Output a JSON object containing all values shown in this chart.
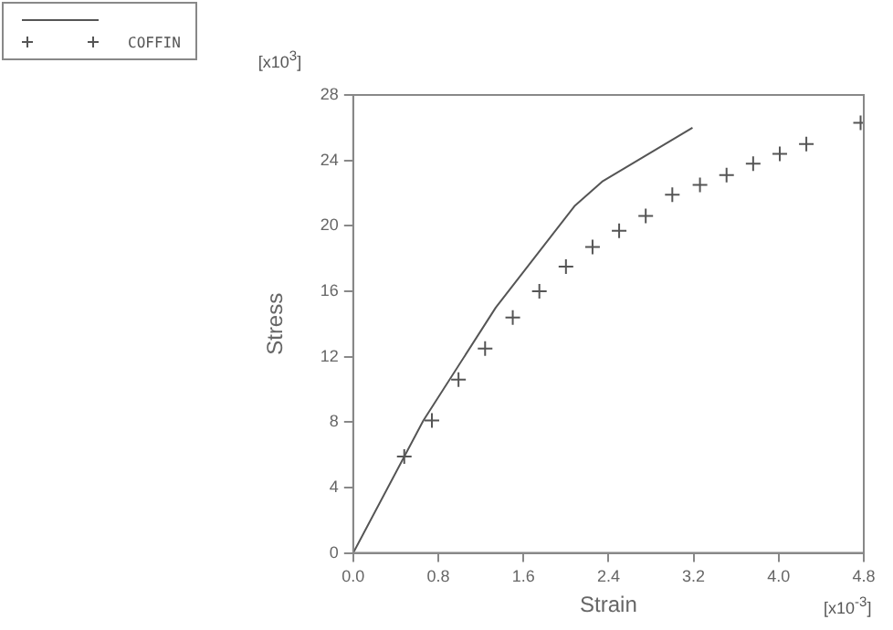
{
  "chart_data": {
    "type": "line",
    "xlabel": "Strain",
    "ylabel": "Stress",
    "xlim": [
      0,
      4.8
    ],
    "ylim": [
      0,
      28
    ],
    "xticks": [
      {
        "value": 0,
        "label": "0.0"
      },
      0.8,
      1.6,
      2.4,
      3.2,
      {
        "value": 4,
        "label": "4.0"
      },
      4.8
    ],
    "yticks": [
      0,
      4,
      8,
      12,
      16,
      20,
      24,
      28
    ],
    "grid": false,
    "legend": "top left",
    "annotations": [
      "[x10$^{3}$]",
      "[x10$^{-3}$]"
    ],
    "series": [
      {
        "color": "#555555",
        "marker": "none",
        "x": [
          0,
          0.66,
          1.34,
          2.08,
          2.34,
          3.19
        ],
        "values": [
          0,
          8.1,
          15.0,
          21.2,
          22.7,
          26.0
        ]
      },
      {
        "type": "scatter",
        "name": "COFFIN",
        "color": "#555555",
        "marker": "cross",
        "x": [
          0.48,
          0.74,
          0.99,
          1.24,
          1.5,
          1.75,
          2.0,
          2.25,
          2.5,
          2.75,
          3.0,
          3.26,
          3.51,
          3.76,
          4.01,
          4.26,
          4.77
        ],
        "values": [
          5.9,
          8.1,
          10.6,
          12.5,
          14.4,
          16.0,
          17.5,
          18.7,
          19.7,
          20.6,
          21.9,
          22.5,
          23.1,
          23.8,
          24.4,
          25.0,
          26.3
        ]
      }
    ]
  }
}
